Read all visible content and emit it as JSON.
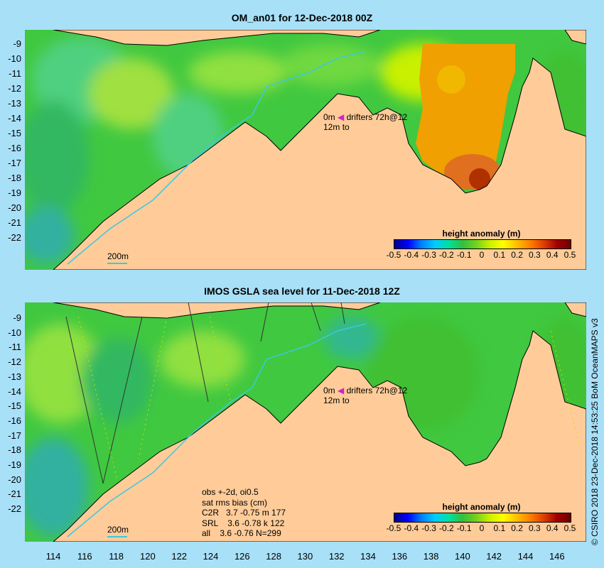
{
  "top_panel": {
    "title": "OM_an01 for 12-Dec-2018 00Z",
    "drifters": {
      "line1_left": "0m",
      "line1_right": "drifters 72h@12",
      "line2_left": "12m",
      "line2_right": "to"
    },
    "scale_label": "200m",
    "colorbar_title": "height anomaly (m)"
  },
  "bottom_panel": {
    "title": "IMOS GSLA sea level  for 11-Dec-2018 12Z",
    "drifters": {
      "line1_left": "0m",
      "line1_right": "drifters 72h@12",
      "line2_left": "12m",
      "line2_right": "to"
    },
    "scale_label": "200m",
    "colorbar_title": "height anomaly (m)",
    "stats": {
      "line1": "obs +-2d, oi0.5",
      "line2": "sat rms bias (cm)",
      "line3": "C2R   3.7 -0.75 m 177",
      "line4": "SRL    3.6 -0.78 k 122",
      "line5": "all    3.6 -0.76 N=299"
    }
  },
  "colorbar_ticks": [
    "-0.5",
    "-0.4",
    "-0.3",
    "-0.2",
    "-0.1",
    "0",
    "0.1",
    "0.2",
    "0.3",
    "0.4",
    "0.5"
  ],
  "y_ticks": [
    "-9",
    "-10",
    "-11",
    "-12",
    "-13",
    "-14",
    "-15",
    "-16",
    "-17",
    "-18",
    "-19",
    "-20",
    "-21",
    "-22"
  ],
  "x_ticks": [
    "114",
    "116",
    "118",
    "120",
    "122",
    "124",
    "126",
    "128",
    "130",
    "132",
    "134",
    "136",
    "138",
    "140",
    "142",
    "144",
    "146"
  ],
  "credit": "© CSIRO 2018   23-Dec-2018 14:53:25 BoM OceanMAPS v3",
  "colors": {
    "land": "#FFCC99",
    "ocean_background": "#A8E0F8",
    "ocean_anomaly_zero": "#3CC83C",
    "positive_anomaly": "#F0A000",
    "isobath": "#3CC8E0",
    "drifter_arrow": "#D020D0"
  }
}
